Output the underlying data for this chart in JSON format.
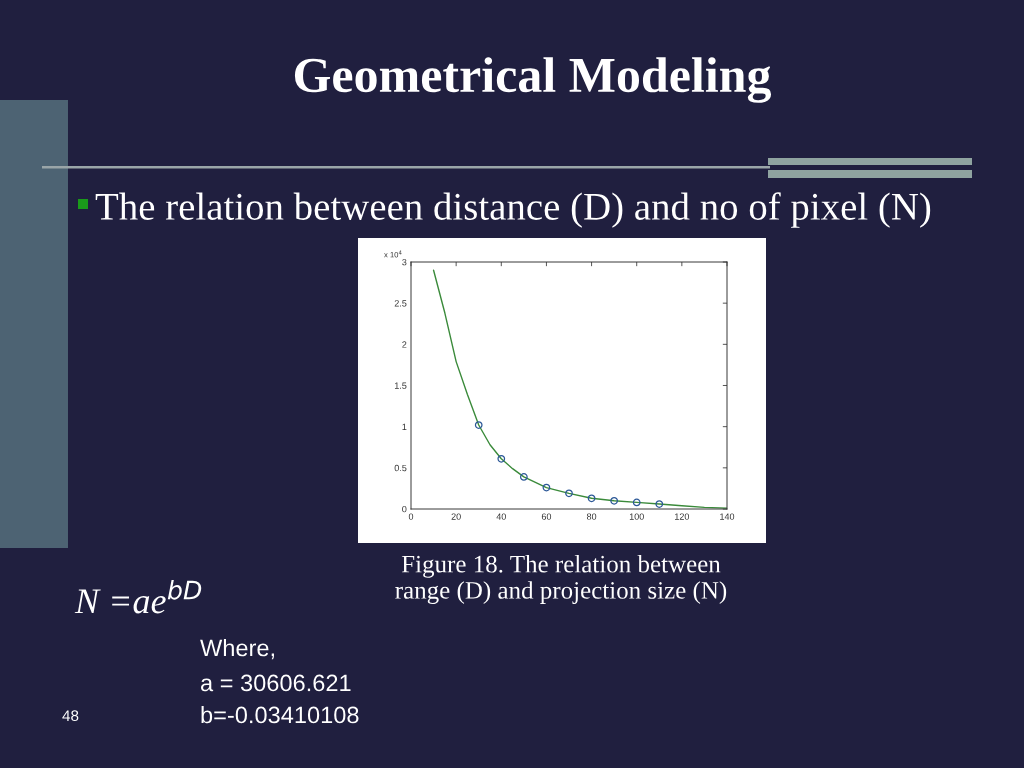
{
  "chart_data": {
    "type": "line",
    "title": "Geometrical Modeling",
    "subtitle": "The relation between distance (D) and no of pixel (N)",
    "series": [
      {
        "color": "#3a8a3a",
        "x": [
          10,
          15,
          20,
          25,
          30,
          35,
          40,
          45,
          50,
          60,
          70,
          80,
          90,
          100,
          110,
          120,
          130,
          140
        ],
        "values": [
          2.9,
          2.38,
          1.79,
          1.39,
          1.02,
          0.78,
          0.61,
          0.49,
          0.39,
          0.26,
          0.19,
          0.13,
          0.1,
          0.08,
          0.06,
          0.04,
          0.02,
          0.01
        ]
      },
      {
        "type": "scatter",
        "color": "#2b5797",
        "marker": "circle",
        "x": [
          30,
          40,
          50,
          60,
          70,
          80,
          90,
          100,
          110
        ],
        "values": [
          1.02,
          0.61,
          0.39,
          0.26,
          0.19,
          0.13,
          0.1,
          0.08,
          0.06
        ]
      }
    ],
    "xlim": [
      0,
      140
    ],
    "xticks": [
      0,
      20,
      40,
      60,
      80,
      100,
      120,
      140
    ],
    "ylim": [
      0,
      3
    ],
    "yticks": [
      0,
      0.5,
      1,
      1.5,
      2,
      2.5,
      3
    ],
    "annotations": [
      "x 10$^{4}$",
      "Figure 18. The relation between\nrange (D) and projection size (N)",
      "N =ae$^{bD}$",
      "Where,",
      "a = 30606.621",
      "b=-0.03410108",
      "48"
    ]
  }
}
